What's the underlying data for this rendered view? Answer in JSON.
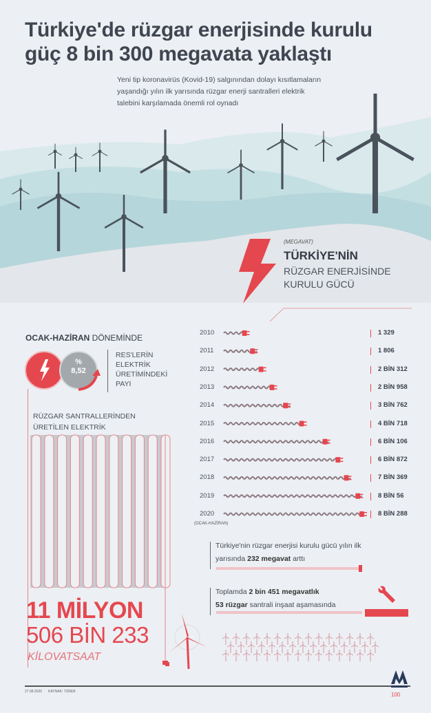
{
  "header": {
    "title": "Türkiye'de rüzgar enerjisinde kurulu güç 8 bin 300 megavata yaklaştı",
    "subtitle": "Yeni tip koronavirüs (Kovid-19) salgınından dolayı kısıtlamaların yaşandığı yılın ilk yarısında rüzgar enerji santralleri elektrik talebini karşılamada önemli rol oynadı"
  },
  "colors": {
    "accent": "#e5474f",
    "text": "#3f4651",
    "hill": "#bfdadd",
    "background": "#eceff3",
    "cable": "#8c7a82"
  },
  "chart_data": {
    "type": "bar",
    "unit_label": "(MEGAVAT)",
    "title_bold": "TÜRKİYE'NİN",
    "title_rest": "RÜZGAR ENERJİSİNDE KURULU GÜCÜ",
    "categories": [
      "2010",
      "2011",
      "2012",
      "2013",
      "2014",
      "2015",
      "2016",
      "2017",
      "2018",
      "2019",
      "2020"
    ],
    "values": [
      1329,
      1806,
      2312,
      2958,
      3762,
      4718,
      6106,
      6872,
      7369,
      8056,
      8288
    ],
    "value_labels": [
      "1 329",
      "1 806",
      "2 BİN 312",
      "2 BİN 958",
      "3 BİN 762",
      "4 BİN 718",
      "6 BİN 106",
      "6 BİN 872",
      "7 BİN 369",
      "8 BİN 56",
      "8 BİN 288"
    ],
    "note_2020": "(OCAK-HAZİRAN)",
    "icon": "plug-cable-icon"
  },
  "share": {
    "period_bold": "OCAK-HAZİRAN",
    "period_rest": " DÖNEMİNDE",
    "percent_sign": "%",
    "percent_value": "8,52",
    "label": "RES'LERİN ELEKTRİK ÜRETİMİNDEKİ PAYI"
  },
  "production": {
    "label": "RÜZGAR SANTRALLERİNDEN ÜRETİLEN ELEKTRİK",
    "line1": "11 MİLYON",
    "line2": "506 BİN 233",
    "unit": "KİLOVATSAAT"
  },
  "notes": [
    {
      "pre": "Türkiye'nin rüzgar enerjisi kurulu gücü yılın ilk yarısında ",
      "bold": "232 megavat",
      "post": " arttı"
    },
    {
      "pre": "Toplamda ",
      "bold": "2 bin 451 megavatlık",
      "mid": " ",
      "bold2": "53 rüzgar",
      "post": " santrali inşaat aşamasında"
    }
  ],
  "footer": {
    "date": "27.08.2020",
    "source": "KAYNAK: TÜREB",
    "logo": "ANADOLU AJANSI"
  }
}
